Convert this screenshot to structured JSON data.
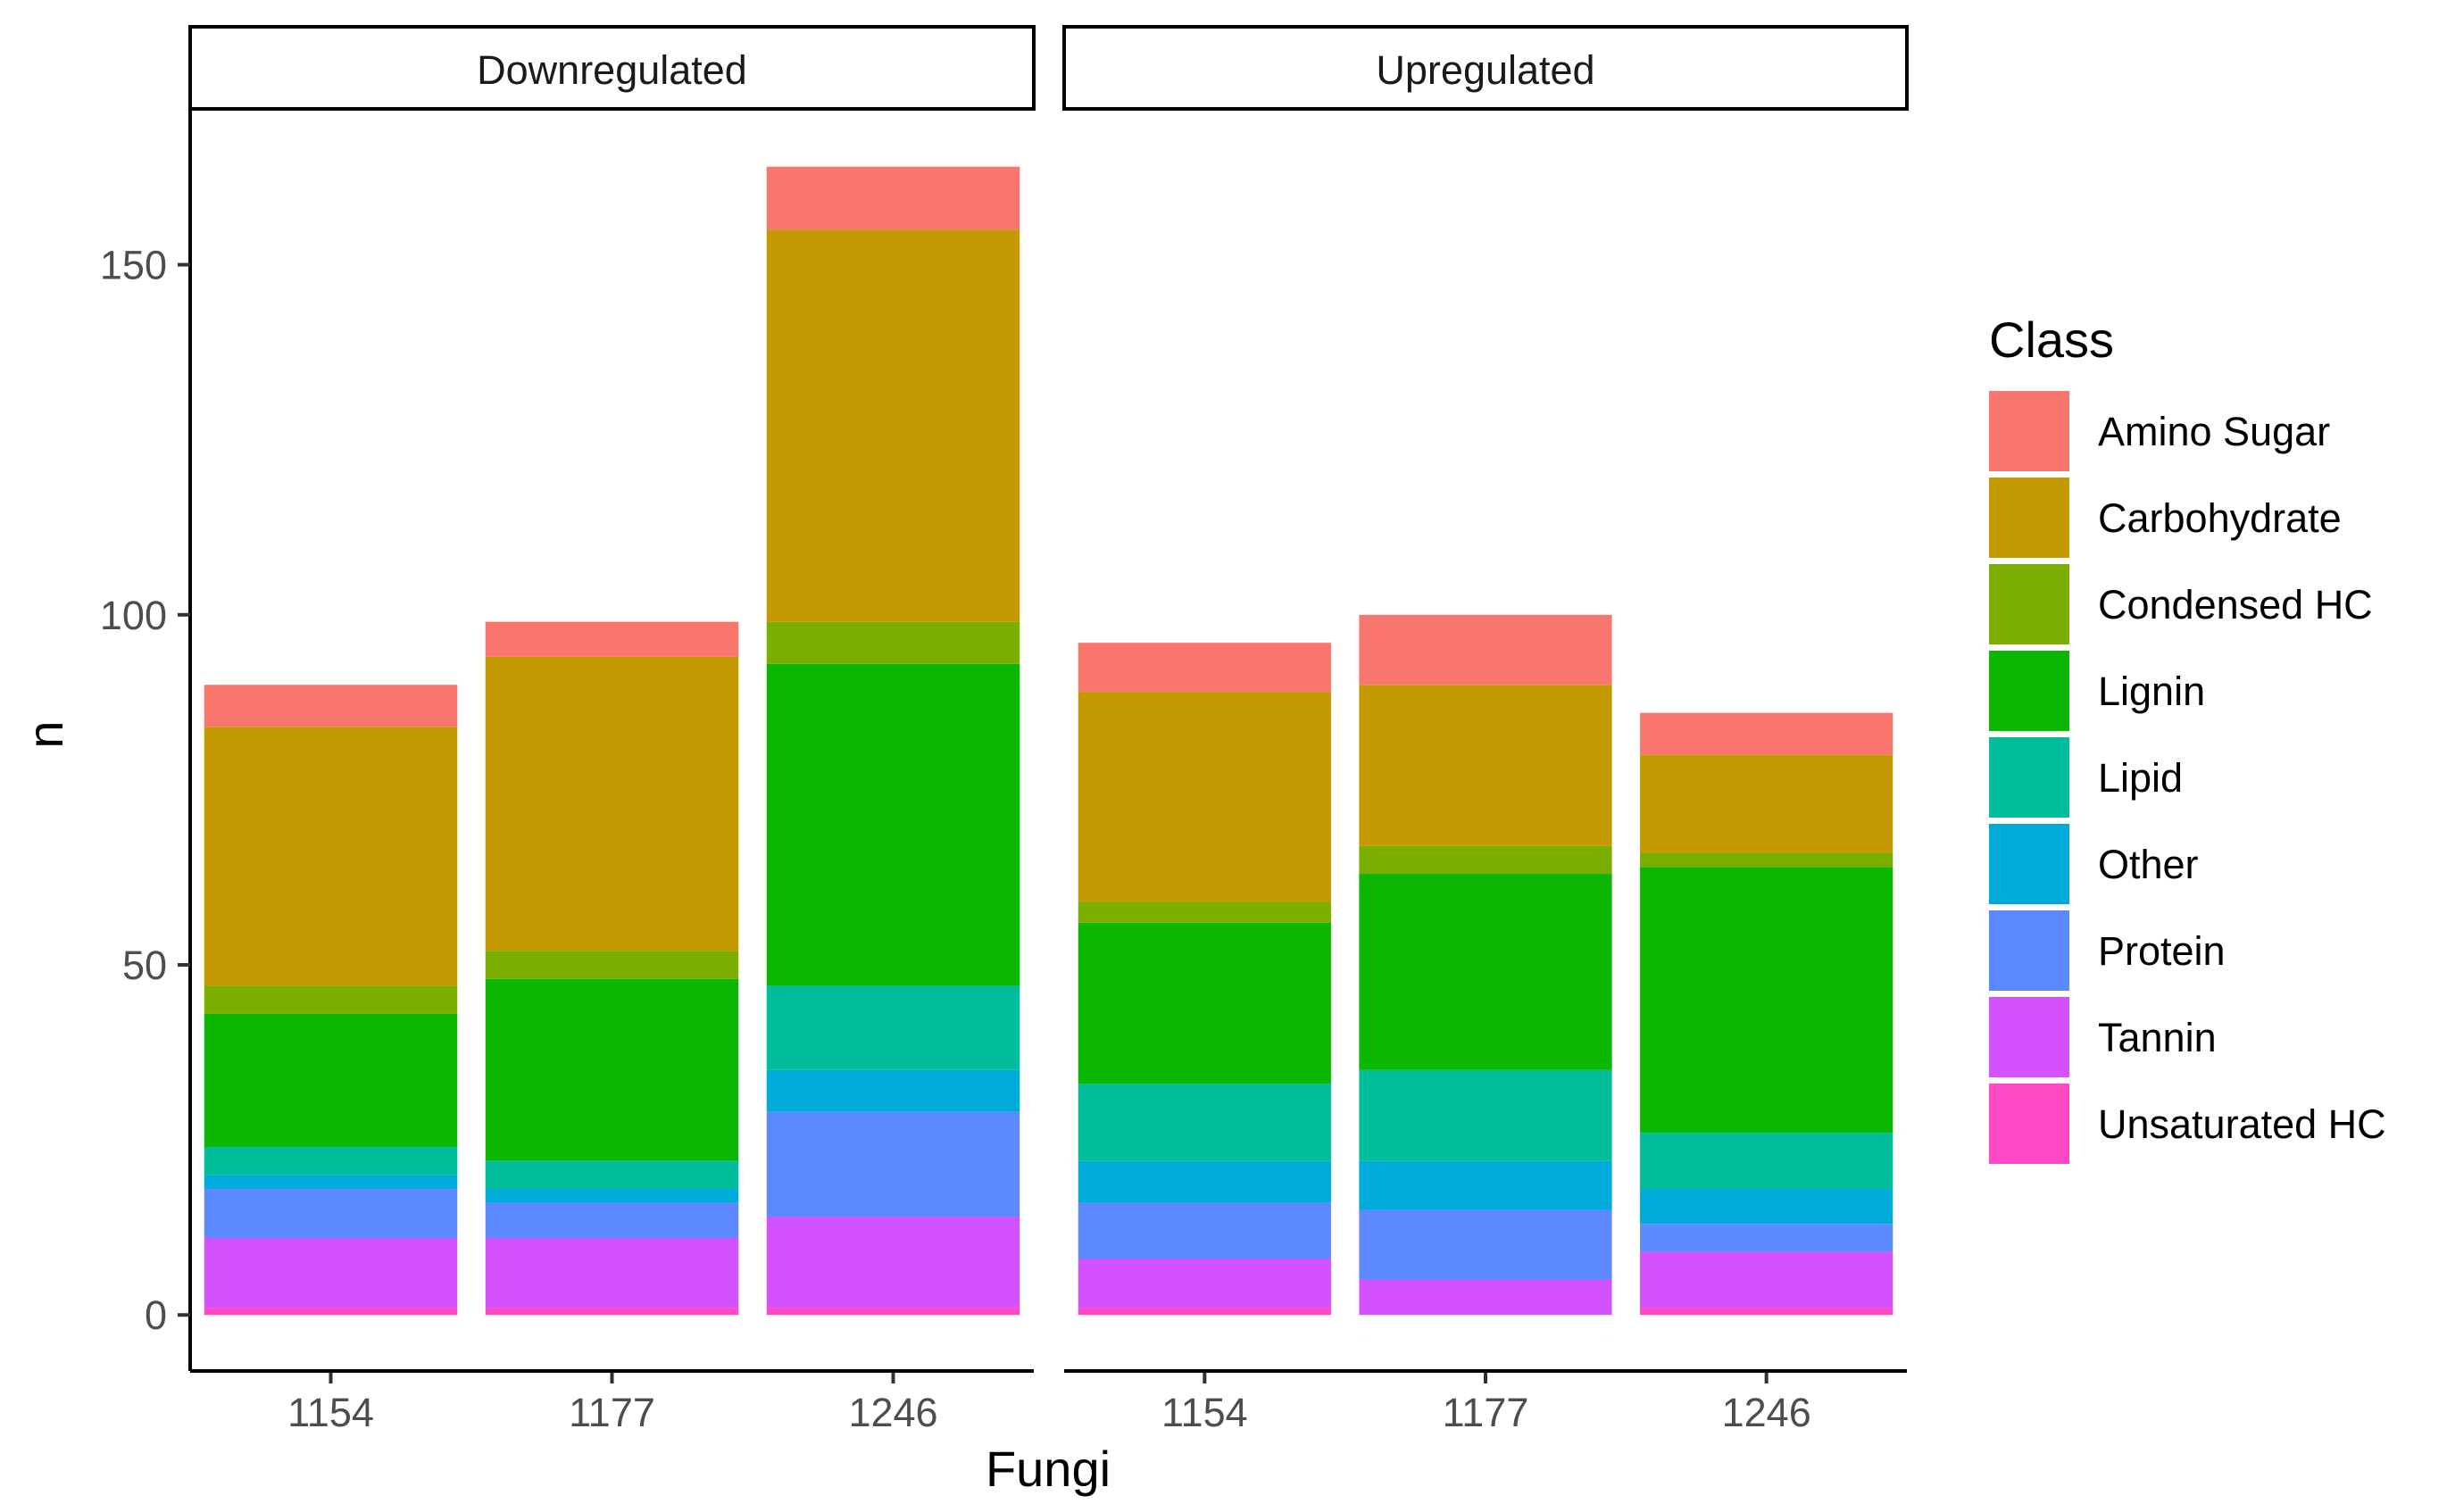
{
  "chart_data": {
    "type": "bar",
    "stacked": true,
    "facet_by": "Regulation",
    "panels": [
      "Downregulated",
      "Upregulated"
    ],
    "categories": [
      "1154",
      "1177",
      "1246"
    ],
    "xlabel": "Fungi",
    "ylabel": "n",
    "ylim": [
      -8,
      172
    ],
    "yticks": [
      0,
      50,
      100,
      150
    ],
    "legend": {
      "title": "Class",
      "position": "right"
    },
    "series": [
      {
        "name": "Amino Sugar",
        "color": "#F8766D",
        "values": {
          "Downregulated": [
            6,
            5,
            9
          ],
          "Upregulated": [
            7,
            10,
            6
          ]
        }
      },
      {
        "name": "Carbohydrate",
        "color": "#C49A00",
        "values": {
          "Downregulated": [
            37,
            42,
            56
          ],
          "Upregulated": [
            30,
            23,
            14
          ]
        }
      },
      {
        "name": "Condensed HC",
        "color": "#7CAE00",
        "values": {
          "Downregulated": [
            4,
            4,
            6
          ],
          "Upregulated": [
            3,
            4,
            2
          ]
        }
      },
      {
        "name": "Lignin",
        "color": "#0CB702",
        "values": {
          "Downregulated": [
            19,
            26,
            46
          ],
          "Upregulated": [
            23,
            28,
            38
          ]
        }
      },
      {
        "name": "Lipid",
        "color": "#00BE9C",
        "values": {
          "Downregulated": [
            4,
            4,
            12
          ],
          "Upregulated": [
            11,
            13,
            8
          ]
        }
      },
      {
        "name": "Other",
        "color": "#00ABDA",
        "values": {
          "Downregulated": [
            2,
            2,
            6
          ],
          "Upregulated": [
            6,
            7,
            5
          ]
        }
      },
      {
        "name": "Protein",
        "color": "#5C89FF",
        "values": {
          "Downregulated": [
            7,
            5,
            15
          ],
          "Upregulated": [
            8,
            10,
            4
          ]
        }
      },
      {
        "name": "Tannin",
        "color": "#D451FF",
        "values": {
          "Downregulated": [
            10,
            10,
            13
          ],
          "Upregulated": [
            7,
            5,
            8
          ]
        }
      },
      {
        "name": "Unsaturated HC",
        "color": "#FF49C4",
        "values": {
          "Downregulated": [
            1,
            1,
            1
          ],
          "Upregulated": [
            1,
            0,
            1
          ]
        }
      }
    ]
  }
}
